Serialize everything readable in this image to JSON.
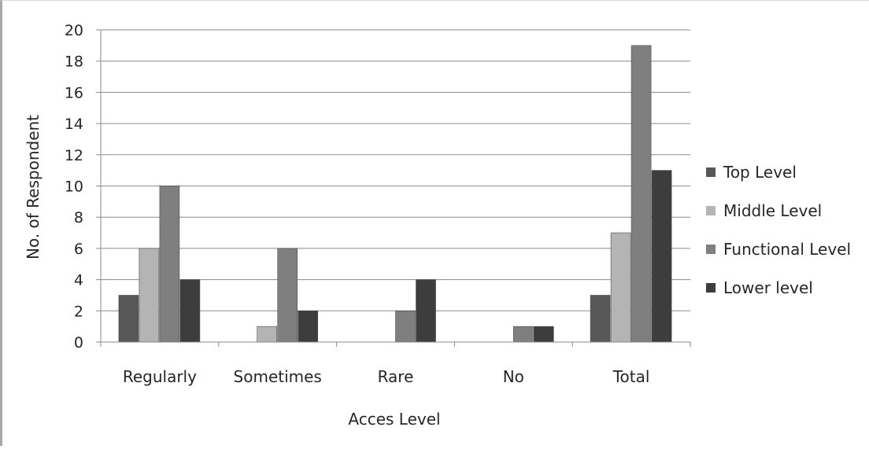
{
  "chart_data": {
    "type": "bar",
    "categories": [
      "Regularly",
      "Sometimes",
      "Rare",
      "No",
      "Total"
    ],
    "series": [
      {
        "name": "Top Level",
        "values": [
          3,
          0,
          0,
          0,
          3
        ],
        "color": "#585858"
      },
      {
        "name": "Middle Level",
        "values": [
          6,
          1,
          0,
          0,
          7
        ],
        "color": "#b4b4b4"
      },
      {
        "name": "Functional Level",
        "values": [
          10,
          6,
          2,
          1,
          19
        ],
        "color": "#7f7f7f"
      },
      {
        "name": "Lower level",
        "values": [
          4,
          2,
          4,
          1,
          11
        ],
        "color": "#3d3d3d"
      }
    ],
    "title": "",
    "xlabel": "Acces Level",
    "ylabel": "No. of Respondent",
    "ylim": [
      0,
      20
    ],
    "yticks": [
      0,
      2,
      4,
      6,
      8,
      10,
      12,
      14,
      16,
      18,
      20
    ],
    "grid": true,
    "legend_position": "right"
  }
}
